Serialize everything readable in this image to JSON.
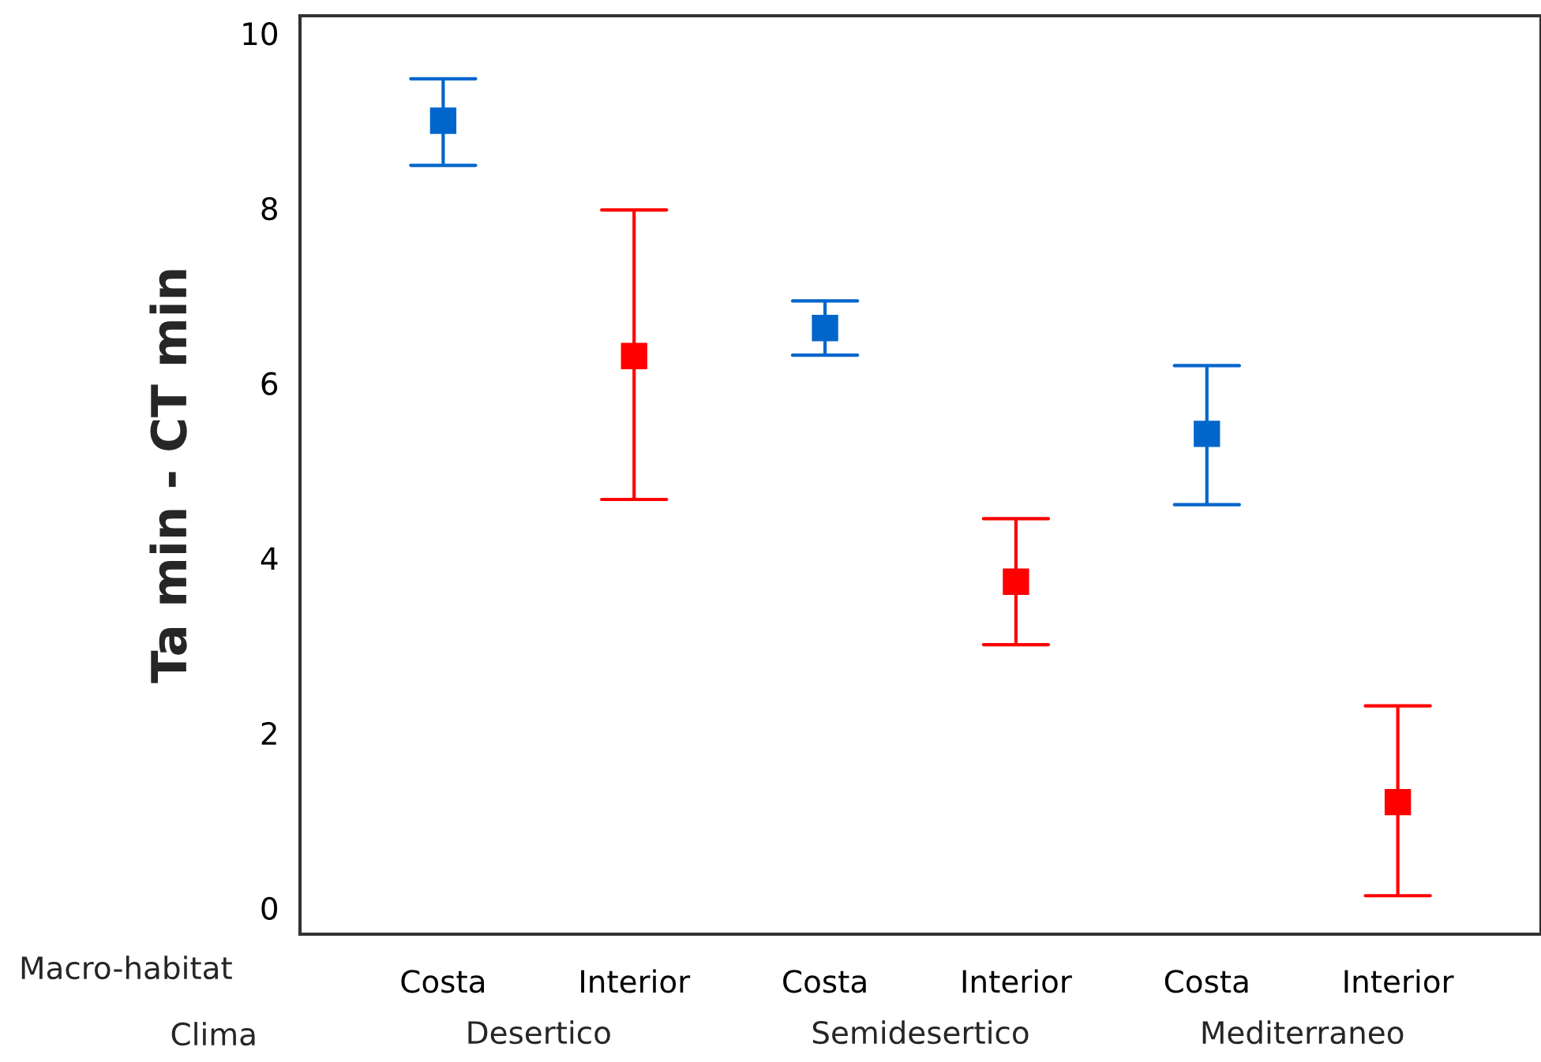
{
  "chart_data": {
    "type": "scatter",
    "ylabel": "Ta min - CT min",
    "categories": [
      "Costa",
      "Interior",
      "Costa",
      "Interior",
      "Costa",
      "Interior"
    ],
    "values": [
      9.0,
      6.31,
      6.63,
      3.73,
      5.42,
      1.21
    ],
    "colors": [
      "#0066cc",
      "#ff0000",
      "#0066cc",
      "#ff0000",
      "#0066cc",
      "#ff0000"
    ],
    "errors": [
      [
        8.49,
        9.48
      ],
      [
        4.67,
        7.98
      ],
      [
        6.32,
        6.94
      ],
      [
        3.01,
        4.45
      ],
      [
        4.61,
        6.2
      ],
      [
        0.14,
        2.31
      ]
    ],
    "marker": "square",
    "ylim": [
      -0.3,
      10.2
    ],
    "yticks": [
      0,
      2,
      4,
      6,
      8,
      10
    ],
    "grid": false,
    "legend": false,
    "annotations": [
      "Macro-habitat",
      "Clima",
      "Desertico",
      "Semidesertico",
      "Mediterraneo"
    ]
  }
}
